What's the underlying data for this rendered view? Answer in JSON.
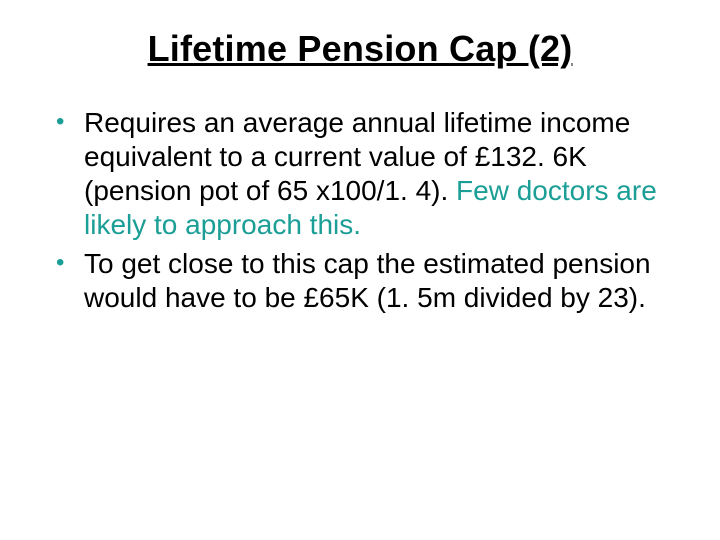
{
  "title": "Lifetime Pension Cap (2)",
  "bullets": [
    {
      "pre": "Requires an average annual lifetime income equivalent to a current value of £132. 6K (pension pot of 65 x100/1. 4). ",
      "highlight": "Few doctors are likely to approach this.",
      "post": ""
    },
    {
      "pre": "To get close to this cap the estimated pension would have to be £65K (1. 5m divided by 23).",
      "highlight": "",
      "post": ""
    }
  ],
  "colors": {
    "bullet_marker": "#1a9e96",
    "highlight_text": "#1a9e96",
    "body_text": "#000000",
    "background": "#ffffff"
  },
  "typography": {
    "title_fontsize": 36,
    "body_fontsize": 28,
    "font_family": "Arial"
  }
}
